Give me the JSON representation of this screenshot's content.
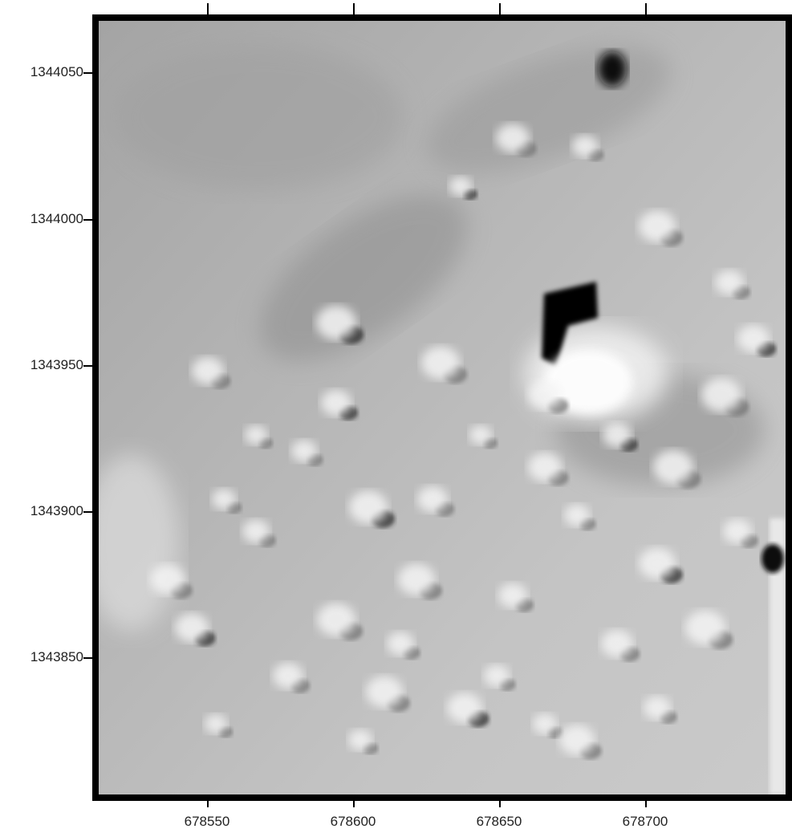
{
  "map": {
    "type": "hillshade-relief",
    "colormap": "grayscale",
    "x_axis": {
      "ticks": [
        678550,
        678600,
        678650,
        678700
      ],
      "labels": [
        "678550",
        "678600",
        "678650",
        "678700"
      ],
      "range": [
        678511,
        678751
      ]
    },
    "y_axis": {
      "ticks": [
        1344050,
        1344000,
        1343950,
        1343900,
        1343850
      ],
      "labels": [
        "1344050",
        "1344000",
        "1343950",
        "1343900",
        "1343850"
      ],
      "range": [
        1343802,
        1344070
      ]
    }
  }
}
